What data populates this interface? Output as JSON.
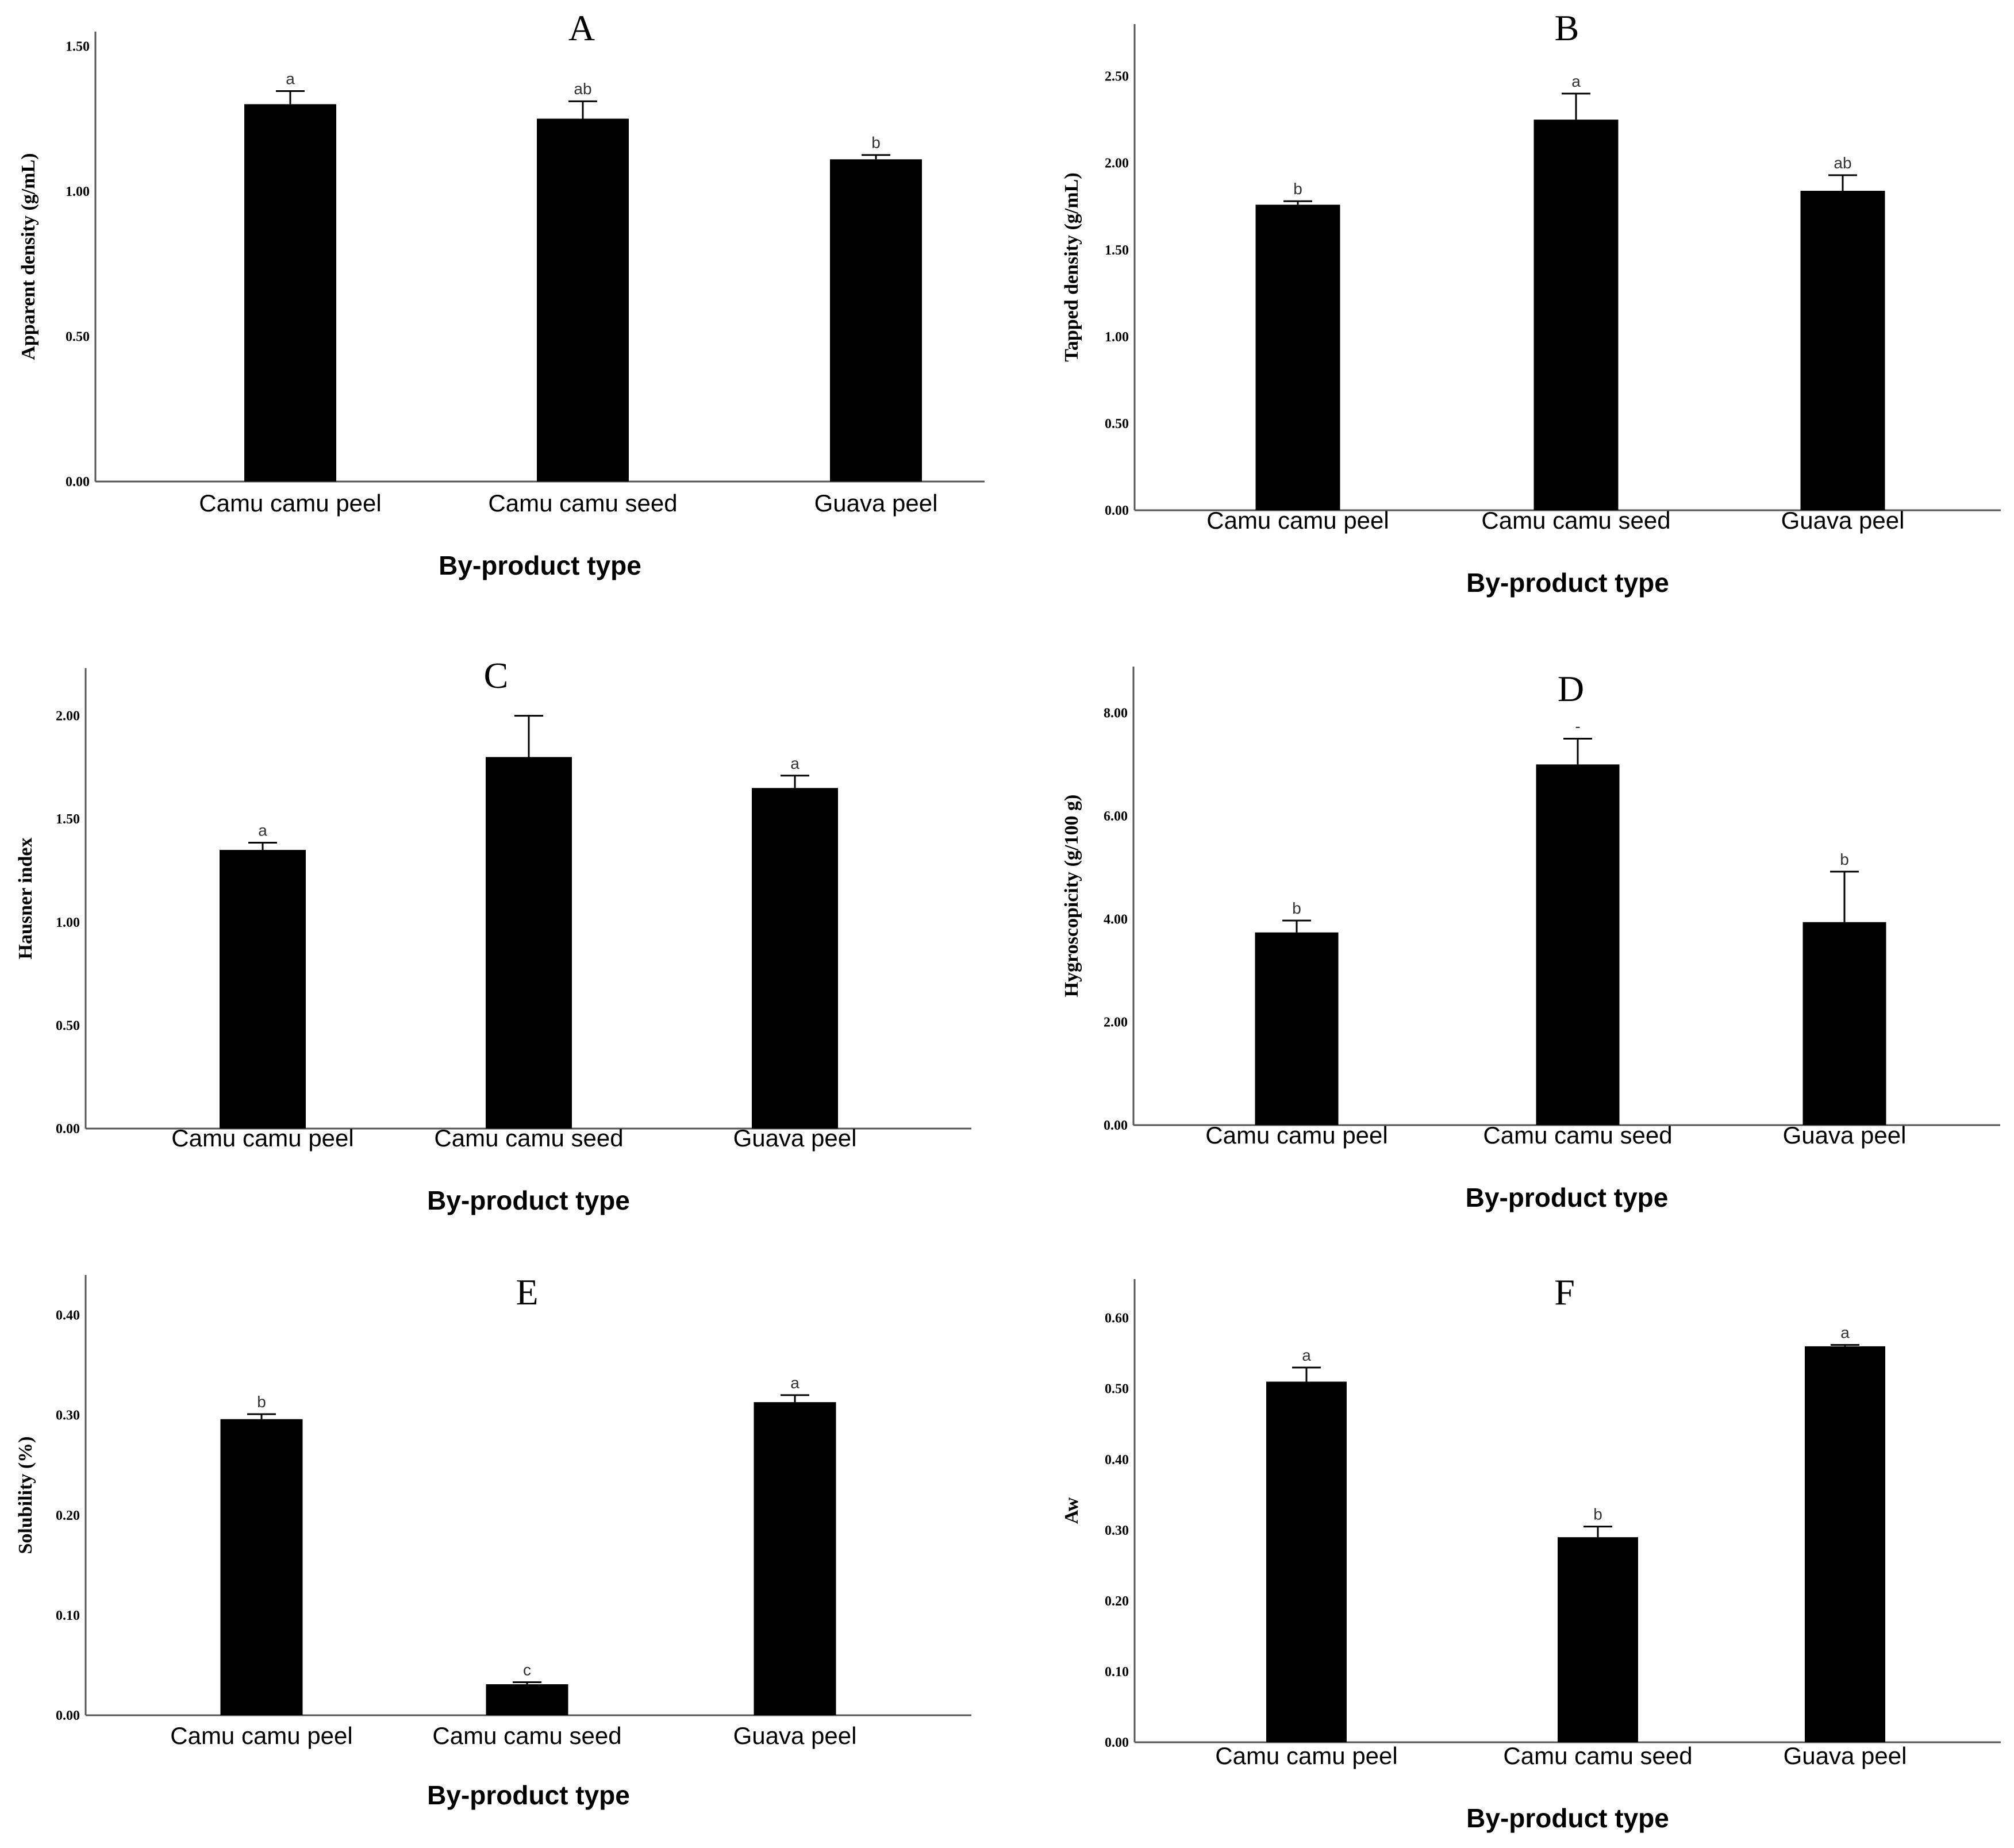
{
  "chart_data": [
    {
      "type": "bar",
      "title": "A",
      "xlabel": "By-product type",
      "ylabel": "Apparent density (g/mL)",
      "categories": [
        "Camu camu peel",
        "Camu camu seed",
        "Guava peel"
      ],
      "values": [
        1.3,
        1.25,
        1.11
      ],
      "errors": [
        0.045,
        0.06,
        0.015
      ],
      "significance": [
        "a",
        "ab",
        "b"
      ],
      "ylim": [
        0,
        1.55
      ],
      "yticks": [
        0.0,
        0.5,
        1.0,
        1.5
      ],
      "ytick_labels": [
        "0.00",
        "0.50",
        "1.00",
        "1.50"
      ]
    },
    {
      "type": "bar",
      "title": "B",
      "xlabel": "By-product type",
      "ylabel": "Tapped density (g/mL)",
      "categories": [
        "Camu camu peel",
        "Camu camu seed",
        "Guava peel"
      ],
      "values": [
        1.76,
        2.25,
        1.84
      ],
      "errors": [
        0.02,
        0.15,
        0.09
      ],
      "significance": [
        "b",
        "a",
        "ab"
      ],
      "ylim": [
        0,
        2.8
      ],
      "yticks": [
        0.0,
        0.5,
        1.0,
        1.5,
        2.0,
        2.5
      ],
      "ytick_labels": [
        "0.00",
        "0.50",
        "1.00",
        "1.50",
        "2.00",
        "2.50"
      ]
    },
    {
      "type": "bar",
      "title": "C",
      "xlabel": "By-product type",
      "ylabel": "Hausner index",
      "categories": [
        "Camu camu peel",
        "Camu camu seed",
        "Guava peel"
      ],
      "values": [
        1.35,
        1.8,
        1.65
      ],
      "errors": [
        0.035,
        0.2,
        0.06
      ],
      "significance": [
        "a",
        "",
        "a"
      ],
      "ylim": [
        0,
        2.23
      ],
      "yticks": [
        0.0,
        0.5,
        1.0,
        1.5,
        2.0
      ],
      "ytick_labels": [
        "0.00",
        "0.50",
        "1.00",
        "1.50",
        "2.00"
      ]
    },
    {
      "type": "bar",
      "title": "D",
      "xlabel": "By-product type",
      "ylabel": "Hygroscopicity (g/100 g)",
      "categories": [
        "Camu camu peel",
        "Camu camu seed",
        "Guava peel"
      ],
      "values": [
        3.74,
        7.0,
        3.94
      ],
      "errors": [
        0.23,
        0.5,
        0.98
      ],
      "significance": [
        "b",
        "-",
        "b"
      ],
      "ylim": [
        0,
        8.9
      ],
      "yticks": [
        0.0,
        2.0,
        4.0,
        6.0,
        8.0
      ],
      "ytick_labels": [
        "0.00",
        "2.00",
        "4.00",
        "6.00",
        "8.00"
      ]
    },
    {
      "type": "bar",
      "title": "E",
      "xlabel": "By-product type",
      "ylabel": "Solubility (%)",
      "categories": [
        "Camu camu peel",
        "Camu camu seed",
        "Guava peel"
      ],
      "values": [
        0.296,
        0.031,
        0.313
      ],
      "errors": [
        0.005,
        0.002,
        0.007
      ],
      "significance": [
        "b",
        "c",
        "a"
      ],
      "ylim": [
        0,
        0.44
      ],
      "yticks": [
        0.0,
        0.1,
        0.2,
        0.3,
        0.4
      ],
      "ytick_labels": [
        "0.00",
        "0.10",
        "0.20",
        "0.30",
        "0.40"
      ]
    },
    {
      "type": "bar",
      "title": "F",
      "xlabel": "By-product type",
      "ylabel": "Aw",
      "categories": [
        "Camu camu peel",
        "Camu camu seed",
        "Guava peel"
      ],
      "values": [
        0.51,
        0.29,
        0.56
      ],
      "errors": [
        0.02,
        0.015,
        0.002
      ],
      "significance": [
        "a",
        "b",
        "a"
      ],
      "ylim": [
        0,
        0.655
      ],
      "yticks": [
        0.0,
        0.1,
        0.2,
        0.3,
        0.4,
        0.5,
        0.6
      ],
      "ytick_labels": [
        "0.00",
        "0.10",
        "0.20",
        "0.30",
        "0.40",
        "0.50",
        "0.60"
      ]
    }
  ]
}
